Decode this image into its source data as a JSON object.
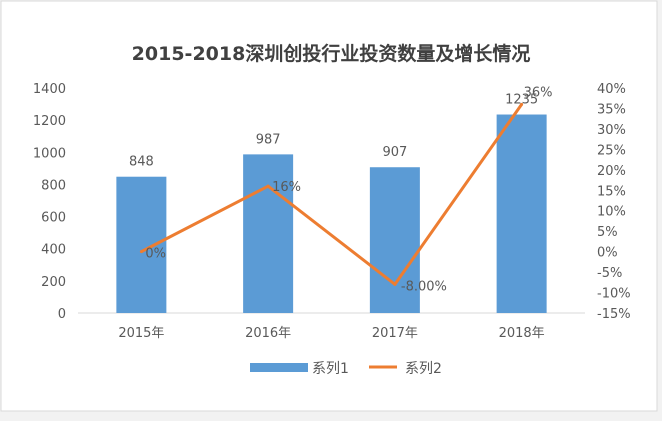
{
  "chart_data": {
    "type": "bar+line",
    "title": "2015-2018深圳创投行业投资数量及增长情况",
    "categories": [
      "2015年",
      "2016年",
      "2017年",
      "2018年"
    ],
    "series": [
      {
        "name": "系列1",
        "type": "bar",
        "axis": "left",
        "values": [
          848,
          987,
          907,
          1235
        ],
        "labels": [
          "848",
          "987",
          "907",
          "1235"
        ],
        "color": "#5b9bd5"
      },
      {
        "name": "系列2",
        "type": "line",
        "axis": "right",
        "values": [
          0,
          16,
          -8,
          36
        ],
        "labels": [
          "0%",
          "16%",
          "-8.00%",
          "36%"
        ],
        "color": "#ed7d31"
      }
    ],
    "y_left": {
      "ylim": [
        0,
        1400
      ],
      "ticks": [
        "0",
        "200",
        "400",
        "600",
        "800",
        "1000",
        "1200",
        "1400"
      ]
    },
    "y_right": {
      "ylim": [
        -15,
        40
      ],
      "ticks": [
        "-15%",
        "-10%",
        "-5%",
        "0%",
        "5%",
        "10%",
        "15%",
        "20%",
        "25%",
        "30%",
        "35%",
        "40%"
      ]
    },
    "xlabel": "",
    "ylabel": "",
    "grid": false,
    "legend": "bottom",
    "colors": {
      "background": "#ffffff",
      "border": "#d9d9d9",
      "text": "#595959",
      "title": "#404040"
    }
  }
}
